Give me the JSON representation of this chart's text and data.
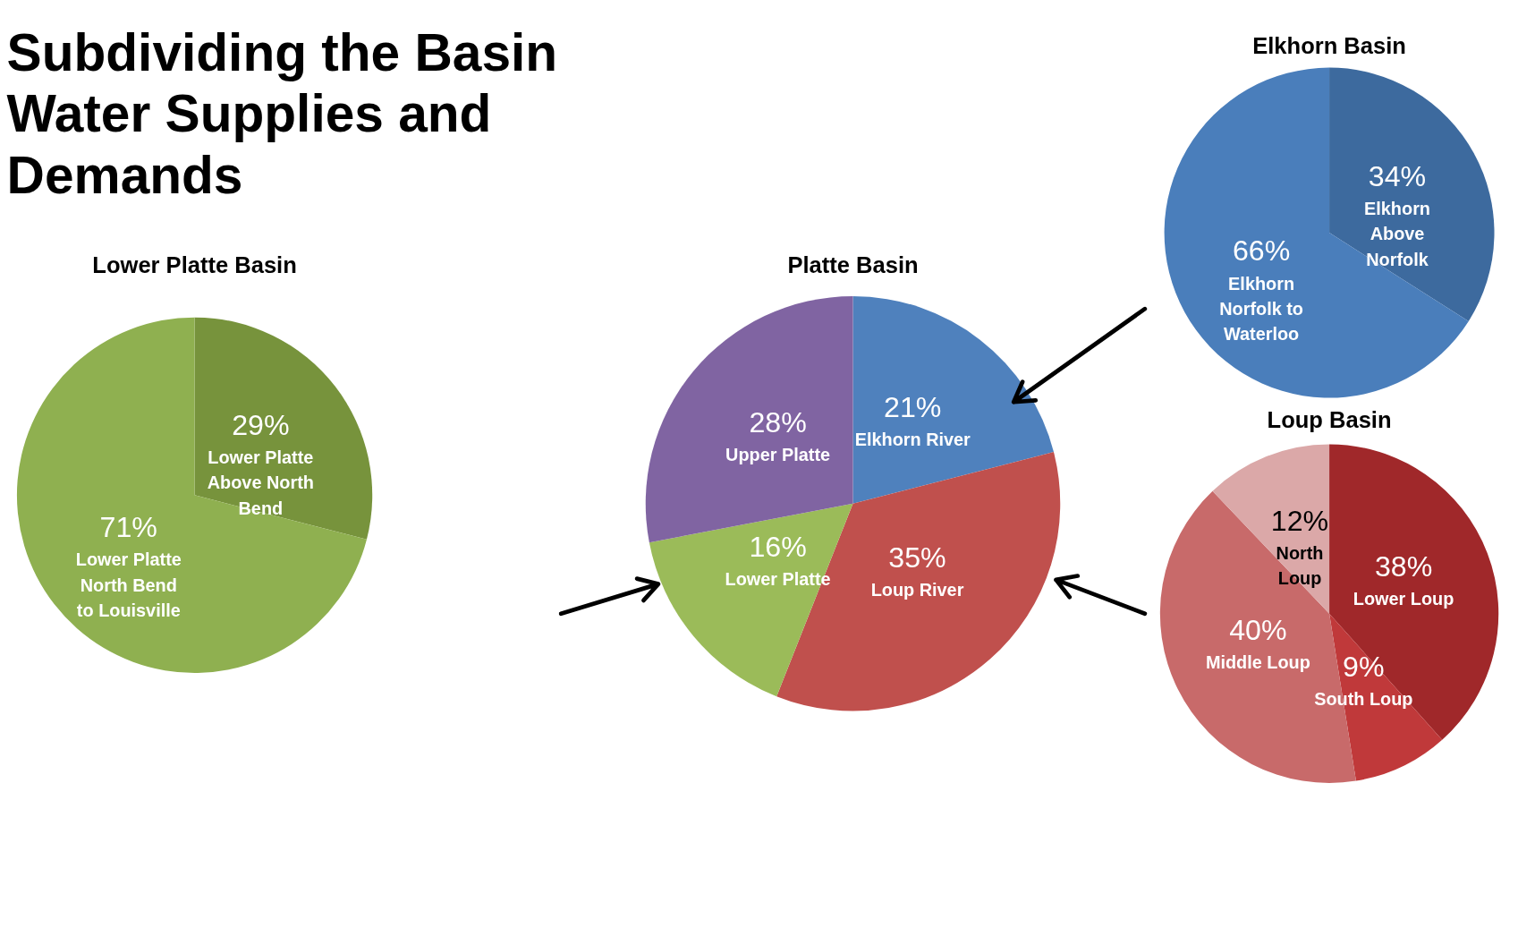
{
  "chart_data": [
    {
      "type": "other",
      "title": "Subdividing the Basin\nWater Supplies and\nDemands"
    },
    {
      "type": "pie",
      "title": "Lower Platte Basin",
      "categories": [
        "Lower Platte\nAbove North\nBend",
        "Lower Platte\nNorth Bend\nto Louisville"
      ],
      "values": [
        29,
        71
      ],
      "colors": [
        "#77933c",
        "#8fb050"
      ],
      "value_labels": [
        "29%",
        "71%"
      ]
    },
    {
      "type": "pie",
      "title": "Platte Basin",
      "categories": [
        "Elkhorn River",
        "Loup River",
        "Lower Platte",
        "Upper Platte"
      ],
      "values": [
        21,
        35,
        16,
        28
      ],
      "colors": [
        "#4f81bd",
        "#c0504d",
        "#9bbb59",
        "#8064a2"
      ],
      "value_labels": [
        "21%",
        "35%",
        "16%",
        "28%"
      ]
    },
    {
      "type": "pie",
      "title": "Elkhorn Basin",
      "categories": [
        "Elkhorn\nAbove\nNorfolk",
        "Elkhorn\nNorfolk to\nWaterloo"
      ],
      "values": [
        34,
        66
      ],
      "colors": [
        "#3d6a9e",
        "#4a7ebb"
      ],
      "value_labels": [
        "34%",
        "66%"
      ]
    },
    {
      "type": "pie",
      "title": "Loup Basin",
      "categories": [
        "Lower Loup",
        "South Loup",
        "Middle Loup",
        "North\nLoup"
      ],
      "values": [
        38,
        9,
        40,
        12
      ],
      "colors": [
        "#a0282a",
        "#c0393a",
        "#c86a6a",
        "#dba8a8"
      ],
      "value_labels": [
        "38%",
        "9%",
        "40%",
        "12%"
      ]
    }
  ]
}
